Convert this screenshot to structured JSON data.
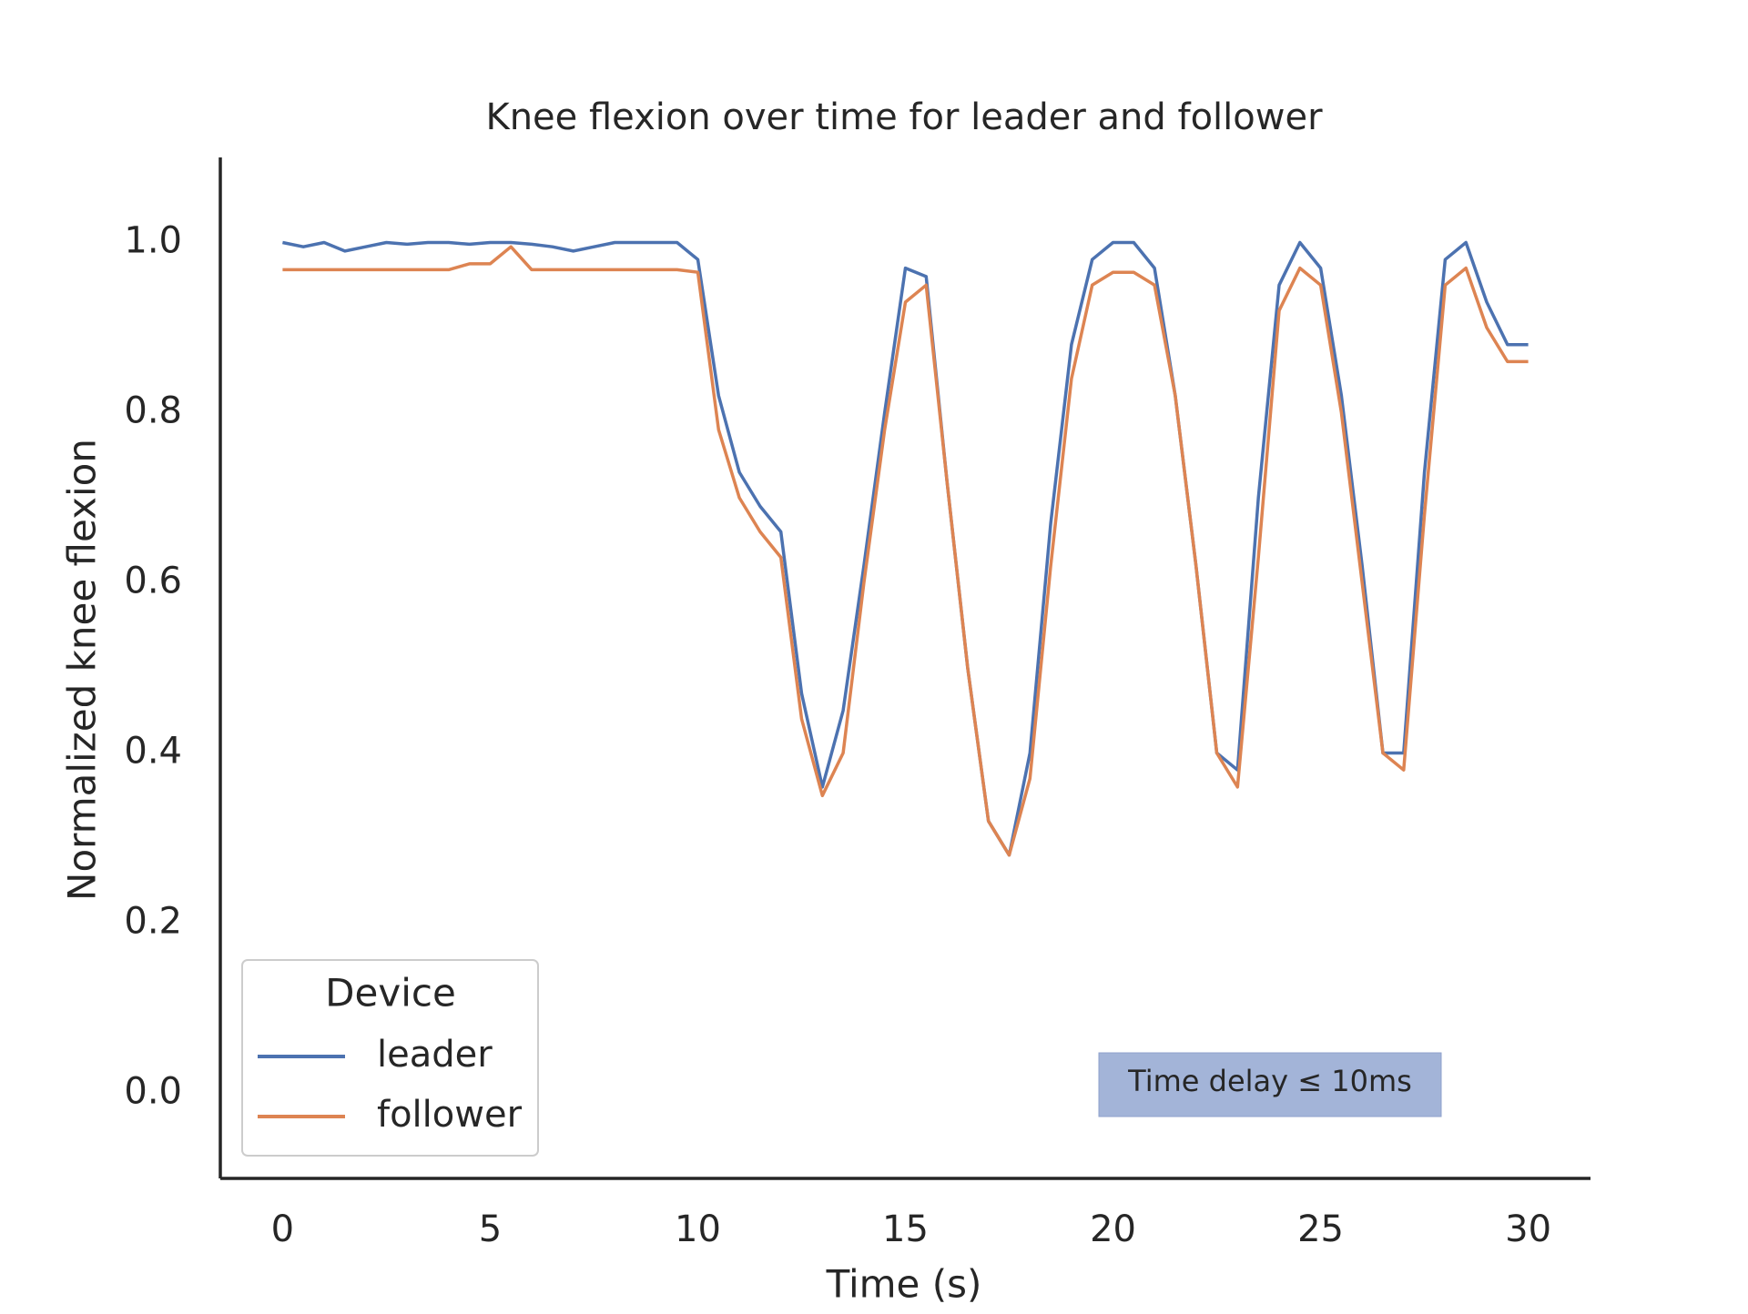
{
  "chart_data": {
    "type": "line",
    "title": "Knee flexion over time for leader and follower",
    "xlabel": "Time (s)",
    "ylabel": "Normalized knee flexion",
    "legend_title": "Device",
    "legend_loc": "lower left",
    "annotation": "Time delay  ≤  10ms",
    "x": [
      0,
      0.5,
      1,
      1.5,
      2,
      2.5,
      3,
      3.5,
      4,
      4.5,
      5,
      5.5,
      6,
      6.5,
      7,
      7.5,
      8,
      8.5,
      9,
      9.5,
      10,
      10.5,
      11,
      11.5,
      12,
      12.5,
      13,
      13.5,
      14,
      14.5,
      15,
      15.5,
      16,
      16.5,
      17,
      17.5,
      18,
      18.5,
      19,
      19.5,
      20,
      20.5,
      21,
      21.5,
      22,
      22.5,
      23,
      23.5,
      24,
      24.5,
      25,
      25.5,
      26,
      26.5,
      27,
      27.5,
      28,
      28.5,
      29,
      29.5,
      30
    ],
    "series": [
      {
        "name": "leader",
        "color": "#4c72b0",
        "values": [
          1.0,
          0.995,
          1.0,
          0.99,
          0.995,
          1.0,
          0.998,
          1.0,
          1.0,
          0.998,
          1.0,
          1.0,
          0.998,
          0.995,
          0.99,
          0.995,
          1.0,
          1.0,
          1.0,
          1.0,
          0.98,
          0.82,
          0.73,
          0.69,
          0.66,
          0.47,
          0.36,
          0.45,
          0.62,
          0.8,
          0.97,
          0.96,
          0.72,
          0.5,
          0.32,
          0.28,
          0.4,
          0.67,
          0.88,
          0.98,
          1.0,
          1.0,
          0.97,
          0.82,
          0.62,
          0.4,
          0.38,
          0.7,
          0.95,
          1.0,
          0.97,
          0.82,
          0.62,
          0.4,
          0.4,
          0.73,
          0.98,
          1.0,
          0.93,
          0.88,
          0.88
        ]
      },
      {
        "name": "follower",
        "color": "#dd8452",
        "values": [
          0.968,
          0.968,
          0.968,
          0.968,
          0.968,
          0.968,
          0.968,
          0.968,
          0.968,
          0.975,
          0.975,
          0.995,
          0.968,
          0.968,
          0.968,
          0.968,
          0.968,
          0.968,
          0.968,
          0.968,
          0.965,
          0.78,
          0.7,
          0.66,
          0.63,
          0.44,
          0.35,
          0.4,
          0.6,
          0.78,
          0.93,
          0.95,
          0.72,
          0.5,
          0.32,
          0.28,
          0.37,
          0.62,
          0.84,
          0.95,
          0.965,
          0.965,
          0.95,
          0.82,
          0.62,
          0.4,
          0.36,
          0.63,
          0.92,
          0.97,
          0.95,
          0.8,
          0.6,
          0.4,
          0.38,
          0.68,
          0.95,
          0.97,
          0.9,
          0.86,
          0.86
        ]
      }
    ],
    "xlim": [
      -1.5,
      31.5
    ],
    "ylim": [
      -0.1,
      1.1
    ],
    "xticks": [
      0,
      5,
      10,
      15,
      20,
      25,
      30
    ],
    "yticks": [
      {
        "value": 0,
        "label": "0.0"
      },
      {
        "value": 0.2,
        "label": "0.2"
      },
      {
        "value": 0.4,
        "label": "0.4"
      },
      {
        "value": 0.6,
        "label": "0.6"
      },
      {
        "value": 0.8,
        "label": "0.8"
      },
      {
        "value": 1,
        "label": "1.0"
      }
    ],
    "grid": false
  }
}
